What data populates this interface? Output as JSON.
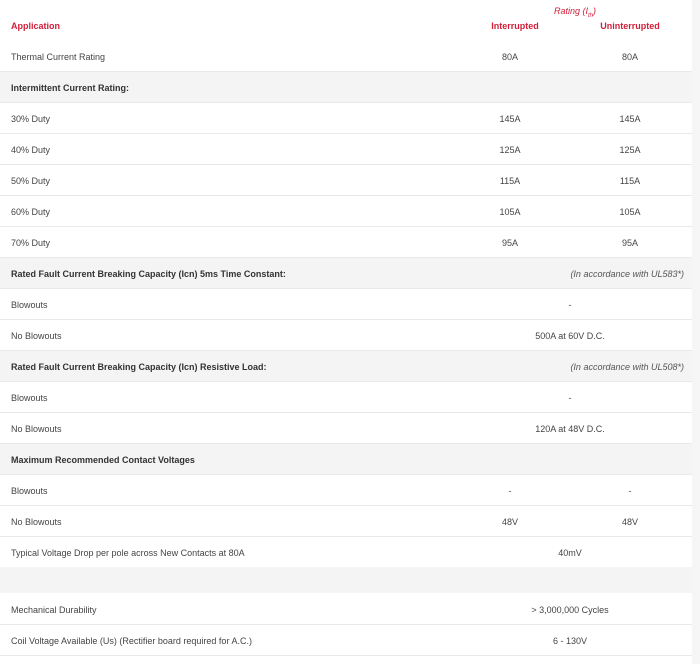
{
  "header": {
    "application": "Application",
    "rating_label": "Rating (",
    "rating_sub": "th",
    "rating_suffix": ")",
    "col1": "Interrupted",
    "col2": "Uninterrupted"
  },
  "rows": [
    {
      "label": "Thermal Current Rating",
      "v1": "80A",
      "v2": "80A"
    },
    {
      "label": "Intermittent Current Rating:"
    },
    {
      "label": "30% Duty",
      "v1": "145A",
      "v2": "145A"
    },
    {
      "label": "40% Duty",
      "v1": "125A",
      "v2": "125A"
    },
    {
      "label": "50% Duty",
      "v1": "115A",
      "v2": "115A"
    },
    {
      "label": "60% Duty",
      "v1": "105A",
      "v2": "105A"
    },
    {
      "label": "70% Duty",
      "v1": "95A",
      "v2": "95A"
    },
    {
      "label": "Rated Fault Current Breaking Capacity (Icn) 5ms Time Constant:",
      "note": "(In accordance with UL583*)"
    },
    {
      "label": "Blowouts",
      "merged": "-"
    },
    {
      "label": "No Blowouts",
      "merged": "500A at 60V D.C."
    },
    {
      "label": "Rated Fault Current Breaking Capacity (Icn) Resistive Load:",
      "note": "(In accordance with UL508*)"
    },
    {
      "label": "Blowouts",
      "merged": "-"
    },
    {
      "label": "No Blowouts",
      "merged": "120A at 48V D.C."
    },
    {
      "label": "Maximum Recommended Contact Voltages"
    },
    {
      "label": "Blowouts",
      "v1": "-",
      "v2": "-"
    },
    {
      "label": "No Blowouts",
      "v1": "48V",
      "v2": "48V"
    },
    {
      "label": "Typical Voltage Drop per pole across New Contacts at 80A",
      "merged": "40mV"
    },
    {
      "label": "Mechanical Durability",
      "merged": "> 3,000,000 Cycles"
    },
    {
      "label": "Coil Voltage Available (Us) (Rectifier board required for A.C.)",
      "merged": "6 - 130V"
    }
  ]
}
